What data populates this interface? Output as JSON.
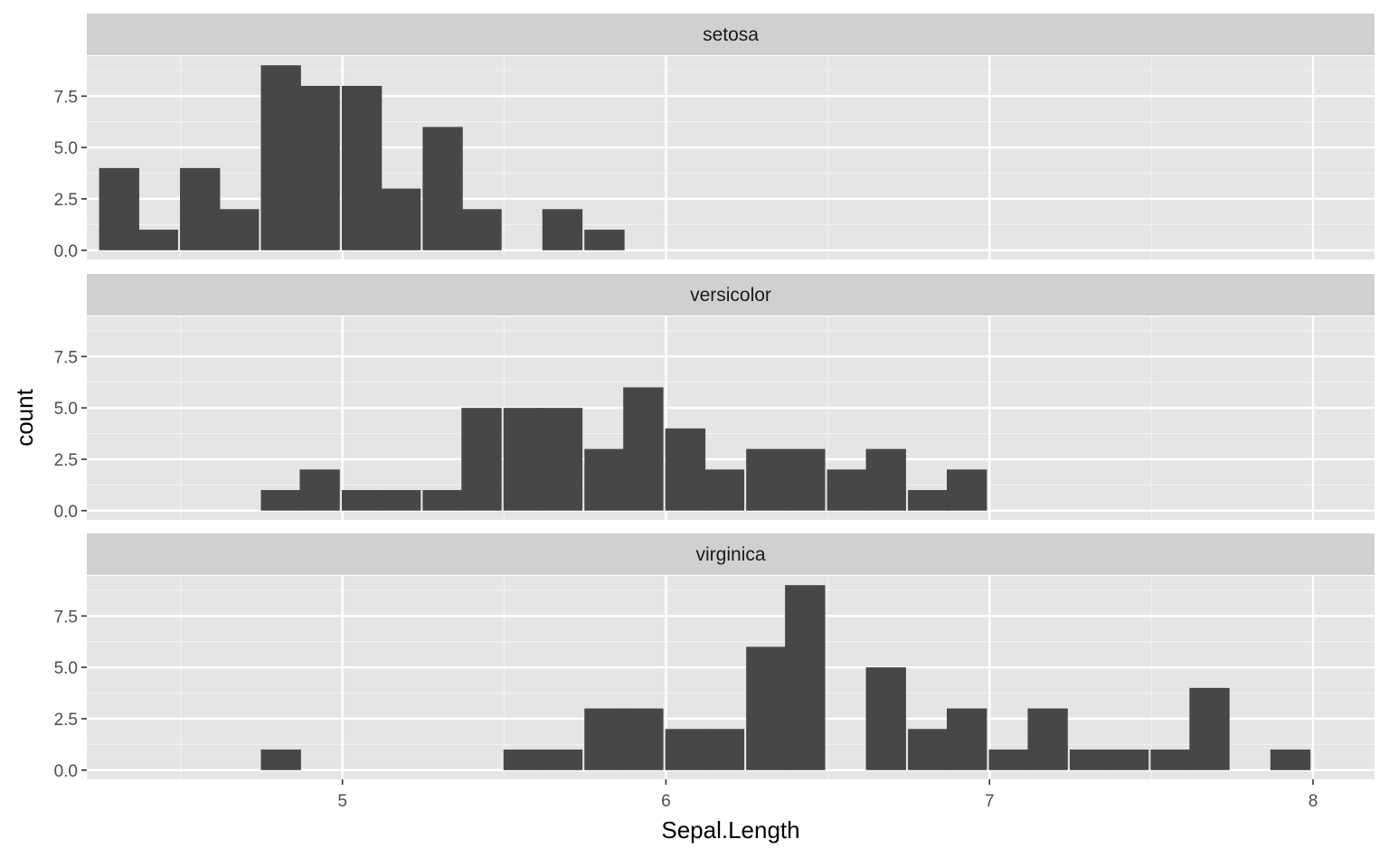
{
  "colors": {
    "panel_background": "#e5e5e5",
    "strip_background": "#d0d0d0",
    "grid_major": "#ffffff",
    "grid_minor": "#f2f2f2",
    "bar_fill": "#474747",
    "tick_mark": "#333333"
  },
  "chart_data": {
    "type": "bar",
    "subtype": "histogram",
    "title": "",
    "xlabel": "Sepal.Length",
    "ylabel": "count",
    "xlim": [
      4.21,
      8.19
    ],
    "ylim": [
      -0.45,
      9.45
    ],
    "bin_width": 0.124,
    "x_ticks": [
      5,
      6,
      7,
      8
    ],
    "y_ticks": [
      0,
      2.5,
      5,
      7.5
    ],
    "x_tick_labels": [
      "5",
      "6",
      "7",
      "8"
    ],
    "y_tick_labels": [
      "0.0",
      "2.5",
      "5.0",
      "7.5"
    ],
    "grid": true,
    "legend": "none",
    "facets": [
      {
        "name": "setosa",
        "bins": [
          {
            "x": 4.31,
            "count": 4
          },
          {
            "x": 4.43,
            "count": 1
          },
          {
            "x": 4.56,
            "count": 4
          },
          {
            "x": 4.68,
            "count": 2
          },
          {
            "x": 4.81,
            "count": 9
          },
          {
            "x": 4.93,
            "count": 8
          },
          {
            "x": 5.06,
            "count": 8
          },
          {
            "x": 5.18,
            "count": 3
          },
          {
            "x": 5.31,
            "count": 6
          },
          {
            "x": 5.43,
            "count": 2
          },
          {
            "x": 5.68,
            "count": 2
          },
          {
            "x": 5.81,
            "count": 1
          }
        ]
      },
      {
        "name": "versicolor",
        "bins": [
          {
            "x": 4.81,
            "count": 1
          },
          {
            "x": 4.93,
            "count": 2
          },
          {
            "x": 5.06,
            "count": 1
          },
          {
            "x": 5.18,
            "count": 1
          },
          {
            "x": 5.31,
            "count": 1
          },
          {
            "x": 5.43,
            "count": 5
          },
          {
            "x": 5.56,
            "count": 5
          },
          {
            "x": 5.68,
            "count": 5
          },
          {
            "x": 5.81,
            "count": 3
          },
          {
            "x": 5.93,
            "count": 6
          },
          {
            "x": 6.06,
            "count": 4
          },
          {
            "x": 6.18,
            "count": 2
          },
          {
            "x": 6.31,
            "count": 3
          },
          {
            "x": 6.43,
            "count": 3
          },
          {
            "x": 6.56,
            "count": 2
          },
          {
            "x": 6.68,
            "count": 3
          },
          {
            "x": 6.81,
            "count": 1
          },
          {
            "x": 6.93,
            "count": 2
          }
        ]
      },
      {
        "name": "virginica",
        "bins": [
          {
            "x": 4.81,
            "count": 1
          },
          {
            "x": 5.56,
            "count": 1
          },
          {
            "x": 5.68,
            "count": 1
          },
          {
            "x": 5.81,
            "count": 3
          },
          {
            "x": 5.93,
            "count": 3
          },
          {
            "x": 6.06,
            "count": 2
          },
          {
            "x": 6.18,
            "count": 2
          },
          {
            "x": 6.31,
            "count": 6
          },
          {
            "x": 6.43,
            "count": 9
          },
          {
            "x": 6.68,
            "count": 5
          },
          {
            "x": 6.81,
            "count": 2
          },
          {
            "x": 6.93,
            "count": 3
          },
          {
            "x": 7.06,
            "count": 1
          },
          {
            "x": 7.18,
            "count": 3
          },
          {
            "x": 7.31,
            "count": 1
          },
          {
            "x": 7.43,
            "count": 1
          },
          {
            "x": 7.56,
            "count": 1
          },
          {
            "x": 7.68,
            "count": 4
          },
          {
            "x": 7.93,
            "count": 1
          }
        ]
      }
    ]
  }
}
